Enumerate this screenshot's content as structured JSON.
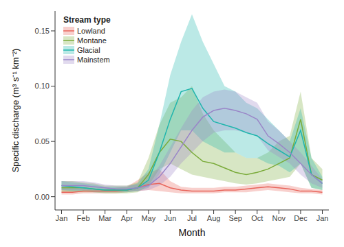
{
  "chart_data": {
    "type": "line",
    "x_label": "Month",
    "y_label": "Specific discharge (m³ s⁻¹ km⁻²)",
    "legend_title": "Stream type",
    "legend": "top-left",
    "grid": false,
    "x": [
      0,
      0.5,
      1,
      1.5,
      2,
      2.5,
      3,
      3.5,
      4,
      4.5,
      5,
      5.5,
      6,
      6.5,
      7,
      7.5,
      8,
      8.5,
      9,
      9.5,
      10,
      10.5,
      11,
      11.5,
      12
    ],
    "xlim": [
      -0.3,
      12.3
    ],
    "xticks": [
      {
        "value": 0,
        "label": "Jan"
      },
      {
        "value": 1,
        "label": "Feb"
      },
      {
        "value": 2,
        "label": "Mar"
      },
      {
        "value": 3,
        "label": "Apr"
      },
      {
        "value": 4,
        "label": "May"
      },
      {
        "value": 5,
        "label": "Jun"
      },
      {
        "value": 6,
        "label": "Jul"
      },
      {
        "value": 7,
        "label": "Aug"
      },
      {
        "value": 8,
        "label": "Sep"
      },
      {
        "value": 9,
        "label": "Oct"
      },
      {
        "value": 10,
        "label": "Nov"
      },
      {
        "value": 11,
        "label": "Dec"
      },
      {
        "value": 12,
        "label": "Jan"
      }
    ],
    "ylim": [
      -0.012,
      0.168
    ],
    "yticks": [
      {
        "value": 0,
        "label": "0.00"
      },
      0.05,
      {
        "value": 0.1,
        "label": "0.10"
      },
      0.15
    ],
    "series": [
      {
        "name": "Lowland",
        "color": "#e8645a",
        "values": [
          0.004,
          0.004,
          0.005,
          0.005,
          0.005,
          0.005,
          0.006,
          0.008,
          0.011,
          0.012,
          0.008,
          0.006,
          0.005,
          0.005,
          0.005,
          0.006,
          0.006,
          0.007,
          0.008,
          0.009,
          0.008,
          0.007,
          0.005,
          0.005,
          0.004
        ],
        "lower": [
          0.002,
          0.002,
          0.003,
          0.003,
          0.003,
          0.003,
          0.004,
          0.005,
          0.006,
          0.005,
          0.004,
          0.003,
          0.003,
          0.003,
          0.003,
          0.004,
          0.004,
          0.004,
          0.005,
          0.006,
          0.005,
          0.004,
          0.003,
          0.003,
          0.002
        ],
        "upper": [
          0.007,
          0.007,
          0.007,
          0.007,
          0.007,
          0.008,
          0.009,
          0.015,
          0.022,
          0.025,
          0.014,
          0.009,
          0.008,
          0.008,
          0.008,
          0.009,
          0.009,
          0.01,
          0.011,
          0.012,
          0.011,
          0.01,
          0.008,
          0.007,
          0.006
        ]
      },
      {
        "name": "Montane",
        "color": "#7aab3a",
        "values": [
          0.008,
          0.008,
          0.008,
          0.007,
          0.006,
          0.006,
          0.006,
          0.008,
          0.02,
          0.04,
          0.052,
          0.05,
          0.04,
          0.032,
          0.03,
          0.026,
          0.022,
          0.02,
          0.022,
          0.025,
          0.03,
          0.035,
          0.07,
          0.02,
          0.015
        ],
        "lower": [
          0.004,
          0.004,
          0.004,
          0.004,
          0.003,
          0.003,
          0.003,
          0.004,
          0.01,
          0.025,
          0.03,
          0.025,
          0.02,
          0.018,
          0.016,
          0.014,
          0.012,
          0.011,
          0.012,
          0.014,
          0.016,
          0.018,
          0.03,
          0.008,
          0.006
        ],
        "upper": [
          0.014,
          0.014,
          0.013,
          0.012,
          0.01,
          0.01,
          0.01,
          0.013,
          0.035,
          0.065,
          0.085,
          0.09,
          0.1,
          0.075,
          0.06,
          0.05,
          0.04,
          0.035,
          0.035,
          0.04,
          0.05,
          0.055,
          0.095,
          0.035,
          0.025
        ]
      },
      {
        "name": "Glacial",
        "color": "#1fb5ad",
        "values": [
          0.01,
          0.009,
          0.008,
          0.007,
          0.006,
          0.006,
          0.006,
          0.008,
          0.015,
          0.04,
          0.07,
          0.095,
          0.098,
          0.08,
          0.068,
          0.065,
          0.062,
          0.058,
          0.055,
          0.048,
          0.042,
          0.036,
          0.06,
          0.02,
          0.012
        ],
        "lower": [
          0.006,
          0.005,
          0.005,
          0.004,
          0.004,
          0.004,
          0.004,
          0.005,
          0.008,
          0.02,
          0.04,
          0.06,
          0.06,
          0.05,
          0.045,
          0.04,
          0.04,
          0.035,
          0.035,
          0.03,
          0.028,
          0.022,
          0.03,
          0.008,
          0.006
        ],
        "upper": [
          0.014,
          0.013,
          0.012,
          0.011,
          0.009,
          0.009,
          0.009,
          0.012,
          0.025,
          0.065,
          0.11,
          0.14,
          0.165,
          0.14,
          0.12,
          0.1,
          0.095,
          0.085,
          0.08,
          0.07,
          0.06,
          0.05,
          0.08,
          0.035,
          0.018
        ]
      },
      {
        "name": "Mainstem",
        "color": "#9a86c8",
        "values": [
          0.01,
          0.01,
          0.01,
          0.009,
          0.008,
          0.007,
          0.007,
          0.008,
          0.01,
          0.018,
          0.03,
          0.045,
          0.06,
          0.072,
          0.078,
          0.08,
          0.078,
          0.075,
          0.07,
          0.055,
          0.048,
          0.04,
          0.03,
          0.02,
          0.012
        ],
        "lower": [
          0.006,
          0.006,
          0.006,
          0.006,
          0.005,
          0.005,
          0.005,
          0.005,
          0.006,
          0.01,
          0.018,
          0.03,
          0.04,
          0.05,
          0.058,
          0.06,
          0.06,
          0.058,
          0.055,
          0.042,
          0.036,
          0.03,
          0.02,
          0.012,
          0.008
        ],
        "upper": [
          0.014,
          0.014,
          0.014,
          0.013,
          0.011,
          0.01,
          0.01,
          0.011,
          0.015,
          0.028,
          0.045,
          0.062,
          0.078,
          0.09,
          0.095,
          0.097,
          0.095,
          0.09,
          0.085,
          0.068,
          0.06,
          0.05,
          0.04,
          0.028,
          0.016
        ]
      }
    ]
  }
}
